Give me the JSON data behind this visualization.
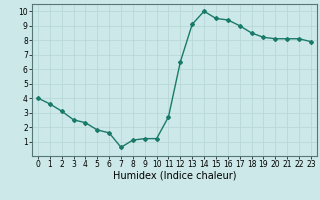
{
  "x": [
    0,
    1,
    2,
    3,
    4,
    5,
    6,
    7,
    8,
    9,
    10,
    11,
    12,
    13,
    14,
    15,
    16,
    17,
    18,
    19,
    20,
    21,
    22,
    23
  ],
  "y": [
    4.0,
    3.6,
    3.1,
    2.5,
    2.3,
    1.8,
    1.6,
    0.6,
    1.1,
    1.2,
    1.2,
    2.7,
    6.5,
    9.1,
    10.0,
    9.5,
    9.4,
    9.0,
    8.5,
    8.2,
    8.1,
    8.1,
    8.1,
    7.9
  ],
  "line_color": "#1a7a6a",
  "marker": "D",
  "markersize": 2.0,
  "linewidth": 1.0,
  "xlabel": "Humidex (Indice chaleur)",
  "ylabel": "",
  "xlim": [
    -0.5,
    23.5
  ],
  "ylim": [
    0,
    10.5
  ],
  "xticks": [
    0,
    1,
    2,
    3,
    4,
    5,
    6,
    7,
    8,
    9,
    10,
    11,
    12,
    13,
    14,
    15,
    16,
    17,
    18,
    19,
    20,
    21,
    22,
    23
  ],
  "yticks": [
    1,
    2,
    3,
    4,
    5,
    6,
    7,
    8,
    9,
    10
  ],
  "bg_color": "#cce8e8",
  "grid_color": "#b8d8d8",
  "label_fontsize": 7,
  "tick_fontsize": 5.5
}
